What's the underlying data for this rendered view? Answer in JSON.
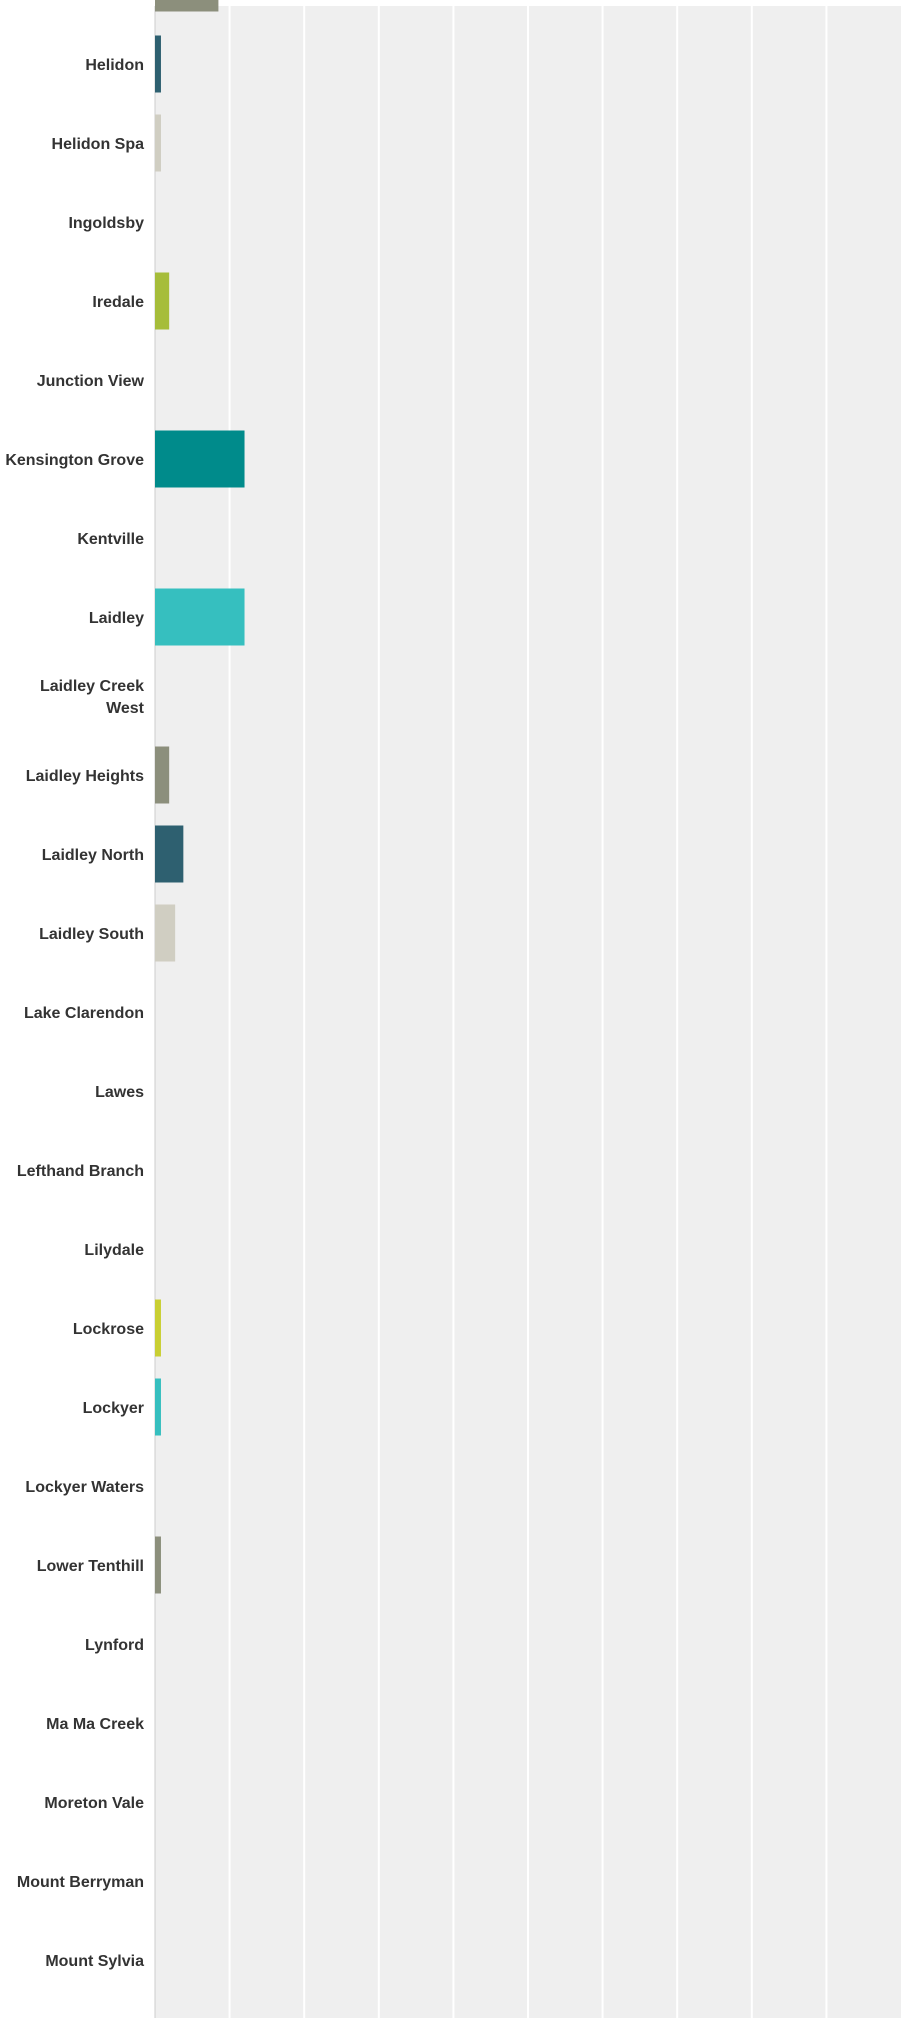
{
  "chart_data": {
    "type": "bar",
    "orientation": "horizontal",
    "title": "",
    "xlabel": "",
    "ylabel": "",
    "grid": true,
    "legend": "none",
    "xlim": [
      0,
      100
    ],
    "categories": [
      "",
      "Helidon",
      "Helidon Spa",
      "Ingoldsby",
      "Iredale",
      "Junction View",
      "Kensington Grove",
      "Kentville",
      "Laidley",
      "Laidley Creek West",
      "Laidley Heights",
      "Laidley North",
      "Laidley South",
      "Lake Clarendon",
      "Lawes",
      "Lefthand Branch",
      "Lilydale",
      "Lockrose",
      "Lockyer",
      "Lockyer Waters",
      "Lower Tenthill",
      "Lynford",
      "Ma Ma Creek",
      "Moreton Vale",
      "Mount Berryman",
      "Mount Sylvia"
    ],
    "values": [
      8.5,
      0.8,
      0.8,
      0,
      1.9,
      0,
      12,
      0,
      12,
      0,
      1.9,
      3.8,
      2.7,
      0,
      0,
      0,
      0,
      0.8,
      0.8,
      0,
      0.8,
      0,
      0,
      0,
      0,
      0
    ],
    "colors": [
      "#8c8f7c",
      "#2e6070",
      "#d0cec2",
      "#d0cec2",
      "#a6bd3a",
      "#a6bd3a",
      "#008b8b",
      "#008b8b",
      "#36bfbf",
      "#36bfbf",
      "#8c8f7c",
      "#2e6070",
      "#d0cec2",
      "#d0cec2",
      "#a6bd3a",
      "#a6bd3a",
      "#c9cf33",
      "#c9cf33",
      "#36bfbf",
      "#36bfbf",
      "#8c8f7c",
      "#8c8f7c",
      "#2e6070",
      "#2e6070",
      "#d0cec2",
      "#d0cec2"
    ],
    "plot_background": "#efefef",
    "gridline_color": "#ffffff",
    "label_color": "#333333"
  }
}
